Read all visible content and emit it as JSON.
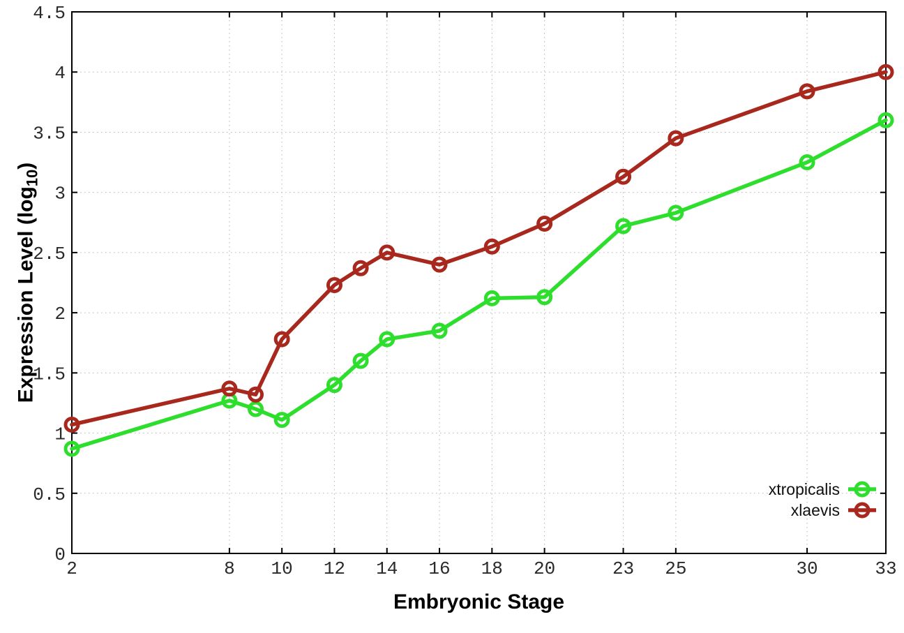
{
  "chart_data": {
    "type": "line",
    "x": [
      2,
      8,
      9,
      10,
      12,
      13,
      14,
      16,
      18,
      20,
      23,
      25,
      30,
      33
    ],
    "series": [
      {
        "name": "xtropicalis",
        "color": "#2dde2d",
        "marker": "open-circle",
        "values": [
          0.87,
          1.27,
          1.2,
          1.11,
          1.4,
          1.6,
          1.78,
          1.85,
          2.12,
          2.13,
          2.72,
          2.83,
          3.25,
          3.6
        ]
      },
      {
        "name": "xlaevis",
        "color": "#a8281e",
        "marker": "open-circle",
        "values": [
          1.07,
          1.37,
          1.32,
          1.78,
          2.23,
          2.37,
          2.5,
          2.4,
          2.55,
          2.74,
          3.13,
          3.45,
          3.84,
          4.0
        ]
      }
    ],
    "xlabel": "Embryonic Stage",
    "ylabel": "Expression Level (log10)",
    "ylabel_parts": {
      "prefix": "Expression Level (log",
      "sub": "10",
      "suffix": ")"
    },
    "xlim": [
      2,
      33
    ],
    "ylim": [
      0,
      4.5
    ],
    "xticks": [
      2,
      8,
      10,
      12,
      14,
      16,
      18,
      20,
      23,
      25,
      30,
      33
    ],
    "xtick_labels": [
      "2",
      "8",
      "10",
      "12",
      "14",
      "16",
      "18",
      "20",
      "23",
      "25",
      "30",
      "33"
    ],
    "yticks": [
      0,
      0.5,
      1,
      1.5,
      2,
      2.5,
      3,
      3.5,
      4,
      4.5
    ],
    "ytick_labels": [
      "0",
      "0.5",
      "1",
      "1.5",
      "2",
      "2.5",
      "3",
      "3.5",
      "4",
      "4.5"
    ],
    "grid": true,
    "grid_color": "#b4b4b4",
    "border_color": "#000000",
    "tick_label_color": "#2a2a2a",
    "legend_position": "bottom-right"
  }
}
